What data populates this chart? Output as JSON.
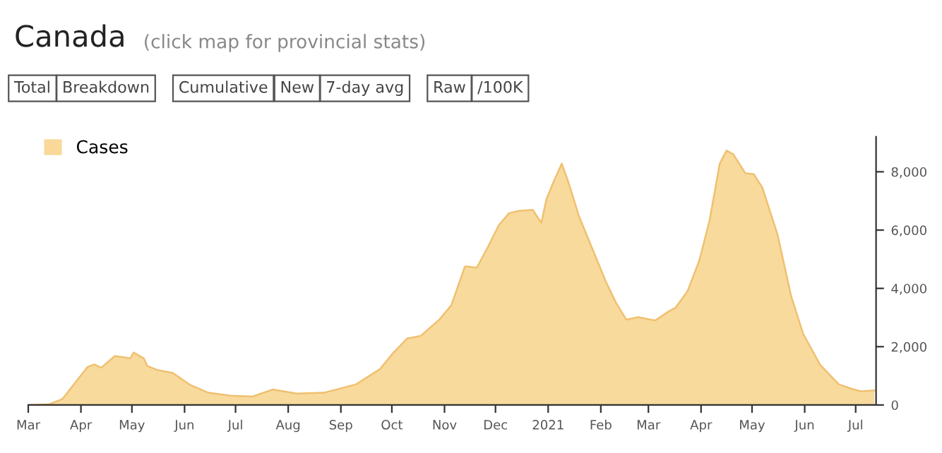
{
  "chart_data": {
    "type": "area",
    "title": "Canada",
    "subtitle": "(click map for provincial stats)",
    "annotations": [
      "Total",
      "Breakdown",
      "Cumulative",
      "New",
      "7-day avg",
      "Raw",
      "/100K"
    ],
    "x": [
      "2020-03-01",
      "2020-03-13",
      "2020-03-21",
      "2020-04-05",
      "2020-04-09",
      "2020-04-13",
      "2020-04-21",
      "2020-04-30",
      "2020-05-02",
      "2020-05-08",
      "2020-05-10",
      "2020-05-16",
      "2020-05-25",
      "2020-06-04",
      "2020-06-15",
      "2020-06-28",
      "2020-07-11",
      "2020-07-23",
      "2020-08-06",
      "2020-08-22",
      "2020-09-10",
      "2020-09-24",
      "2020-10-02",
      "2020-10-10",
      "2020-10-18",
      "2020-10-29",
      "2020-11-05",
      "2020-11-13",
      "2020-11-15",
      "2020-11-20",
      "2020-11-26",
      "2020-12-03",
      "2020-12-09",
      "2020-12-15",
      "2020-12-23",
      "2020-12-26",
      "2020-12-28",
      "2020-12-31",
      "2021-01-04",
      "2021-01-09",
      "2021-01-13",
      "2021-01-19",
      "2021-01-27",
      "2021-02-04",
      "2021-02-10",
      "2021-02-16",
      "2021-02-23",
      "2021-03-05",
      "2021-03-13",
      "2021-03-17",
      "2021-03-24",
      "2021-03-31",
      "2021-04-06",
      "2021-04-12",
      "2021-04-16",
      "2021-04-20",
      "2021-04-27",
      "2021-05-02",
      "2021-05-07",
      "2021-05-16",
      "2021-05-24",
      "2021-05-31",
      "2021-06-10",
      "2021-06-21",
      "2021-06-29",
      "2021-07-04",
      "2021-07-12"
    ],
    "series": [
      {
        "name": "Cases",
        "color": "#f9d898",
        "values": [
          0,
          20,
          200,
          1310,
          1390,
          1280,
          1680,
          1600,
          1800,
          1600,
          1340,
          1200,
          1100,
          700,
          420,
          320,
          290,
          530,
          390,
          420,
          710,
          1230,
          1800,
          2280,
          2370,
          2930,
          3420,
          4750,
          4750,
          4710,
          5360,
          6170,
          6580,
          6660,
          6690,
          6420,
          6250,
          7060,
          7630,
          8280,
          7630,
          6500,
          5360,
          4230,
          3500,
          2930,
          3010,
          2900,
          3210,
          3340,
          3900,
          4960,
          6330,
          8280,
          8730,
          8600,
          7950,
          7920,
          7470,
          5850,
          3740,
          2450,
          1390,
          710,
          550,
          470,
          500
        ]
      }
    ],
    "xlim": [
      "2020-03-01",
      "2021-07-13"
    ],
    "xticks": [
      {
        "value": "2020-03-01",
        "label": "Mar"
      },
      {
        "value": "2020-04-01",
        "label": "Apr"
      },
      {
        "value": "2020-05-01",
        "label": "May"
      },
      {
        "value": "2020-06-01",
        "label": "Jun"
      },
      {
        "value": "2020-07-01",
        "label": "Jul"
      },
      {
        "value": "2020-08-01",
        "label": "Aug"
      },
      {
        "value": "2020-09-01",
        "label": "Sep"
      },
      {
        "value": "2020-10-01",
        "label": "Oct"
      },
      {
        "value": "2020-11-01",
        "label": "Nov"
      },
      {
        "value": "2020-12-01",
        "label": "Dec"
      },
      {
        "value": "2021-01-01",
        "label": "2021"
      },
      {
        "value": "2021-02-01",
        "label": "Feb"
      },
      {
        "value": "2021-03-01",
        "label": "Mar"
      },
      {
        "value": "2021-04-01",
        "label": "Apr"
      },
      {
        "value": "2021-05-01",
        "label": "May"
      },
      {
        "value": "2021-06-01",
        "label": "Jun"
      },
      {
        "value": "2021-07-01",
        "label": "Jul"
      }
    ],
    "ylim": [
      0,
      9200
    ],
    "yticks": [
      0,
      {
        "value": 2000,
        "label": "2,000"
      },
      {
        "value": 4000,
        "label": "4,000"
      },
      {
        "value": 6000,
        "label": "6,000"
      },
      {
        "value": 8000,
        "label": "8,000"
      }
    ],
    "grid": false,
    "legend": "top left"
  }
}
